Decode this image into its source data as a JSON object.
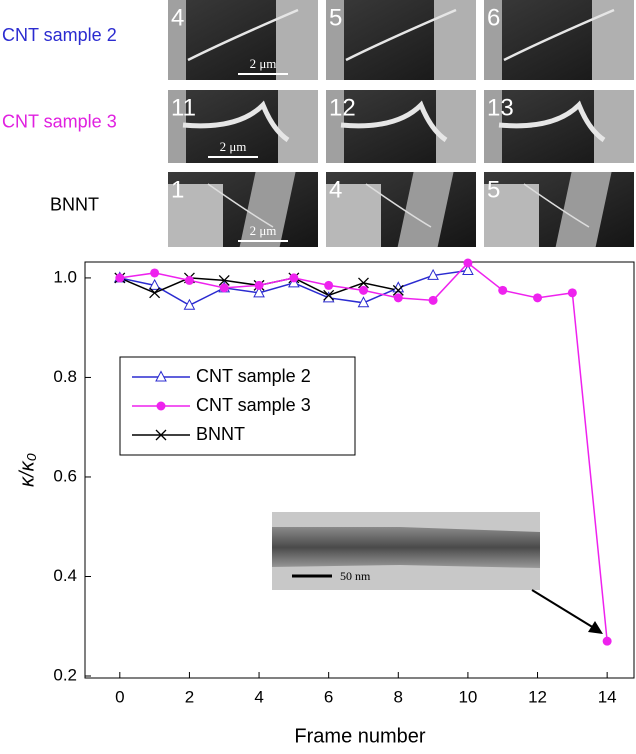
{
  "panels": {
    "rows": [
      {
        "label": "CNT sample 2",
        "color": "#2b2bd0",
        "frames": [
          "4",
          "5",
          "6"
        ],
        "scale_bar": "2 μm"
      },
      {
        "label": "CNT sample 3",
        "color": "#e020e0",
        "frames": [
          "11",
          "12",
          "13"
        ],
        "scale_bar": "2 μm"
      },
      {
        "label": "BNNT",
        "color": "#000000",
        "frames": [
          "1",
          "4",
          "5"
        ],
        "scale_bar": "2 μm"
      }
    ]
  },
  "inset": {
    "scale_bar": "50 nm"
  },
  "chart_data": {
    "type": "line",
    "x_label": "Frame number",
    "y_label": "κ/κ₀",
    "x": [
      0,
      1,
      2,
      3,
      4,
      5,
      6,
      7,
      8,
      9,
      10,
      11,
      12,
      13,
      14
    ],
    "series": [
      {
        "name": "CNT sample 2",
        "color": "#2b2bd0",
        "marker": "triangle",
        "values": [
          1.0,
          0.985,
          0.945,
          0.98,
          0.97,
          0.99,
          0.96,
          0.95,
          0.98,
          1.005,
          1.015,
          null,
          null,
          null,
          null
        ]
      },
      {
        "name": "CNT sample 3",
        "color": "#ee22ee",
        "marker": "circle",
        "values": [
          1.0,
          1.01,
          0.995,
          0.98,
          0.985,
          1.0,
          0.985,
          0.975,
          0.96,
          0.955,
          1.03,
          0.975,
          0.96,
          0.97,
          0.27
        ]
      },
      {
        "name": "BNNT",
        "color": "#000000",
        "marker": "x",
        "values": [
          1.0,
          0.97,
          1.0,
          0.995,
          0.985,
          1.0,
          0.965,
          0.99,
          0.975,
          null,
          null,
          null,
          null,
          null,
          null
        ]
      }
    ],
    "xlim": [
      -1,
      14.8
    ],
    "ylim": [
      0.196,
      1.032
    ],
    "xticks": [
      0,
      2,
      4,
      6,
      8,
      10,
      12,
      14
    ],
    "yticks": [
      0.2,
      0.4,
      0.6,
      0.8,
      {
        "value": 1,
        "label": "1.0"
      }
    ]
  }
}
